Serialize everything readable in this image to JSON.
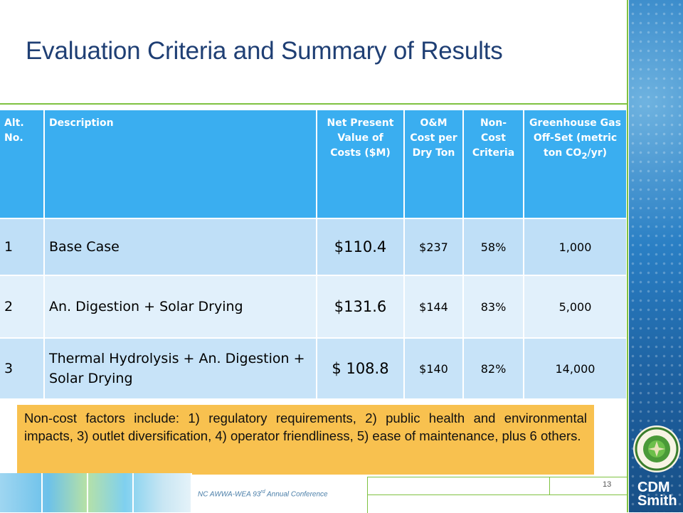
{
  "title": "Evaluation Criteria and Summary of Results",
  "table": {
    "headers": {
      "alt": "Alt. No.",
      "description": "Description",
      "npv": "Net Present Value of Costs ($M)",
      "om": "O&M Cost per Dry Ton",
      "noncost": "Non-Cost Criteria",
      "ghg_prefix": "Greenhouse Gas Off-Set (metric ton CO",
      "ghg_sub": "2",
      "ghg_suffix": "/yr)"
    },
    "rows": [
      {
        "alt": "1",
        "description": "Base Case",
        "npv": "$110.4",
        "om": "$237",
        "noncost": "58%",
        "ghg": "1,000"
      },
      {
        "alt": "2",
        "description": "An. Digestion + Solar Drying",
        "npv": "$131.6",
        "om": "$144",
        "noncost": "83%",
        "ghg": "5,000"
      },
      {
        "alt": "3",
        "description": "Thermal Hydrolysis + An. Digestion + Solar Drying",
        "npv": "$ 108.8",
        "om": "$140",
        "noncost": "82%",
        "ghg": "14,000"
      }
    ]
  },
  "note": "Non-cost factors include: 1) regulatory requirements, 2) public health and environmental impacts, 3) outlet diversification, 4) operator friendliness, 5) ease of maintenance, plus 6 others.",
  "footer": {
    "conference_prefix": "NC AWWA-WEA 93",
    "conference_sup": "rd",
    "conference_suffix": " Annual Conference",
    "page_number": "13"
  },
  "logo": {
    "line1": "CDM",
    "line2": "Smith"
  },
  "colors": {
    "header_blue": "#3aaef0",
    "row_light_blue": "#bfdff7",
    "accent_green": "#7fc241",
    "note_yellow": "#f8c14f",
    "title_navy": "#1f3f74"
  }
}
